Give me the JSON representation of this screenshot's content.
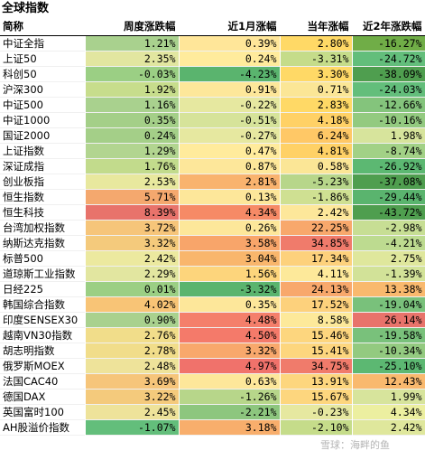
{
  "title": "全球指数",
  "headers": [
    "简称",
    "周度涨跌幅",
    "近1月涨幅",
    "当年涨幅",
    "近2年涨跌幅"
  ],
  "rows": [
    {
      "name": "中证全指",
      "values": [
        "1.21%",
        "0.39%",
        "2.80%",
        "-16.27%"
      ],
      "colors": [
        "#a9d18e",
        "#ffe699",
        "#ffd966",
        "#70ad47"
      ]
    },
    {
      "name": "上证50",
      "values": [
        "2.35%",
        "0.24%",
        "-3.31%",
        "-24.72%"
      ],
      "colors": [
        "#e2e6a0",
        "#ffeb9c",
        "#c5dc8a",
        "#63be7b"
      ]
    },
    {
      "name": "科创50",
      "values": [
        "-0.03%",
        "-4.23%",
        "3.30%",
        "-38.09%"
      ],
      "colors": [
        "#9bcf84",
        "#5ab46e",
        "#ffd966",
        "#4f9e4f"
      ]
    },
    {
      "name": "沪深300",
      "values": [
        "1.92%",
        "0.91%",
        "0.71%",
        "-24.03%"
      ],
      "colors": [
        "#c7dd8c",
        "#fde79a",
        "#fbe696",
        "#63be7b"
      ]
    },
    {
      "name": "中证500",
      "values": [
        "1.16%",
        "-0.22%",
        "2.83%",
        "-12.66%"
      ],
      "colors": [
        "#a9d18e",
        "#e6e8a0",
        "#ffd966",
        "#84c47c"
      ]
    },
    {
      "name": "中证1000",
      "values": [
        "0.35%",
        "-0.51%",
        "4.18%",
        "-10.16%"
      ],
      "colors": [
        "#a4cf88",
        "#d6e39a",
        "#ffd166",
        "#93ca80"
      ]
    },
    {
      "name": "国证2000",
      "values": [
        "0.24%",
        "-0.27%",
        "6.24%",
        "1.98%"
      ],
      "colors": [
        "#a4cf88",
        "#e6e8a0",
        "#ffc866",
        "#d7e49c"
      ]
    },
    {
      "name": "上证指数",
      "values": [
        "1.29%",
        "0.47%",
        "4.81%",
        "-8.74%"
      ],
      "colors": [
        "#b2d590",
        "#ffeb9c",
        "#ffd166",
        "#a2d186"
      ]
    },
    {
      "name": "深证成指",
      "values": [
        "1.76%",
        "0.87%",
        "0.58%",
        "-26.92%"
      ],
      "colors": [
        "#c2db8c",
        "#fde79a",
        "#fbe696",
        "#5cb872"
      ]
    },
    {
      "name": "创业板指",
      "values": [
        "2.53%",
        "2.81%",
        "-5.23%",
        "-37.08%"
      ],
      "colors": [
        "#e8e89e",
        "#f9b36e",
        "#b7d68a",
        "#4f9e4f"
      ]
    },
    {
      "name": "恒生指数",
      "values": [
        "5.71%",
        "0.13%",
        "-1.86%",
        "-29.44%"
      ],
      "colors": [
        "#f4a86e",
        "#fde79a",
        "#cfe092",
        "#5ab46e"
      ]
    },
    {
      "name": "恒生科技",
      "values": [
        "8.39%",
        "4.34%",
        "2.42%",
        "-43.72%"
      ],
      "colors": [
        "#e8736b",
        "#f68a66",
        "#fde79a",
        "#4f9e4f"
      ]
    },
    {
      "name": "台湾加权指数",
      "values": [
        "3.72%",
        "0.26%",
        "22.25%",
        "-2.98%"
      ],
      "colors": [
        "#f6c57a",
        "#fde79a",
        "#f8a86c",
        "#c7de94"
      ]
    },
    {
      "name": "纳斯达克指数",
      "values": [
        "3.32%",
        "3.58%",
        "34.85%",
        "-4.21%"
      ],
      "colors": [
        "#f4ca7c",
        "#f8a56a",
        "#f07b6b",
        "#bddb90"
      ]
    },
    {
      "name": "标普500",
      "values": [
        "2.42%",
        "3.04%",
        "17.34%",
        "2.75%"
      ],
      "colors": [
        "#ece99f",
        "#f9b66c",
        "#fdd17c",
        "#dfe79c"
      ]
    },
    {
      "name": "道琼斯工业指数",
      "values": [
        "2.29%",
        "1.56%",
        "4.11%",
        "-1.39%"
      ],
      "colors": [
        "#e2e6a0",
        "#fdd57c",
        "#fde99a",
        "#d2e298"
      ]
    },
    {
      "name": "日经225",
      "values": [
        "0.01%",
        "-3.32%",
        "24.13%",
        "13.38%"
      ],
      "colors": [
        "#9bcf84",
        "#5ab46e",
        "#f8a86c",
        "#f9b96e"
      ]
    },
    {
      "name": "韩国综合指数",
      "values": [
        "4.02%",
        "0.35%",
        "17.52%",
        "-19.04%"
      ],
      "colors": [
        "#f8c476",
        "#fde79a",
        "#fdd17c",
        "#79c17b"
      ]
    },
    {
      "name": "印度SENSEX30",
      "values": [
        "0.90%",
        "4.48%",
        "8.58%",
        "26.14%"
      ],
      "colors": [
        "#a9d18e",
        "#f47f6b",
        "#fde99a",
        "#e8736b"
      ]
    },
    {
      "name": "越南VN30指数",
      "values": [
        "2.76%",
        "4.50%",
        "15.46%",
        "-19.58%"
      ],
      "colors": [
        "#f1dd8a",
        "#f47a6a",
        "#fdd67e",
        "#79c17b"
      ]
    },
    {
      "name": "胡志明指数",
      "values": [
        "2.78%",
        "3.32%",
        "15.41%",
        "-10.34%"
      ],
      "colors": [
        "#f1dd8a",
        "#f8a86c",
        "#fdd67e",
        "#93ca80"
      ]
    },
    {
      "name": "俄罗斯MOEX",
      "values": [
        "2.48%",
        "4.97%",
        "34.75%",
        "-25.10%"
      ],
      "colors": [
        "#eee39a",
        "#f0726b",
        "#f07b6b",
        "#5cb872"
      ]
    },
    {
      "name": "法国CAC40",
      "values": [
        "3.69%",
        "0.63%",
        "13.91%",
        "12.43%"
      ],
      "colors": [
        "#f6c57a",
        "#fde79a",
        "#fdd67e",
        "#f9b96e"
      ]
    },
    {
      "name": "德国DAX",
      "values": [
        "3.22%",
        "-1.26%",
        "15.67%",
        "1.99%"
      ],
      "colors": [
        "#f4ca7c",
        "#b7d68a",
        "#fdd67e",
        "#d7e49c"
      ]
    },
    {
      "name": "英国富时100",
      "values": [
        "2.45%",
        "-2.21%",
        "-0.23%",
        "4.34%"
      ],
      "colors": [
        "#eee39a",
        "#8dc67e",
        "#e6e8a0",
        "#ecefa0"
      ]
    },
    {
      "name": "AH股溢价指数",
      "values": [
        "-1.07%",
        "3.18%",
        "-2.10%",
        "2.42%"
      ],
      "colors": [
        "#63be7b",
        "#f8ae6c",
        "#c5dc8a",
        "#dfe79c"
      ]
    }
  ],
  "watermark": "雪球：海畔的鱼"
}
